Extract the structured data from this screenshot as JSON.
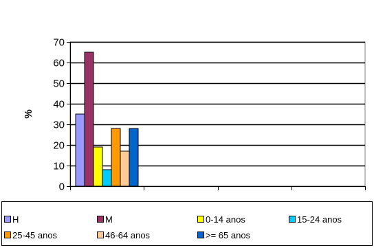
{
  "chart_data": {
    "type": "bar",
    "title": "",
    "xlabel": "",
    "ylabel": "%",
    "ylim": [
      0,
      70
    ],
    "yticks": [
      0,
      10,
      20,
      30,
      40,
      50,
      60,
      70
    ],
    "categories_count": 4,
    "grid": true,
    "legend_position": "bottom",
    "series": [
      {
        "name": "H",
        "value": 35,
        "color": "#9999FF"
      },
      {
        "name": "M",
        "value": 65,
        "color": "#993366"
      },
      {
        "name": "0-14 anos",
        "value": 19,
        "color": "#FFFF00"
      },
      {
        "name": "15-24 anos",
        "value": 8,
        "color": "#00CCFF"
      },
      {
        "name": "25-45 anos",
        "value": 28,
        "color": "#FF9900"
      },
      {
        "name": "46-64 anos",
        "value": 17,
        "color": "#FFCC99"
      },
      {
        "name": ">= 65 anos",
        "value": 28,
        "color": "#0066CC"
      }
    ]
  }
}
